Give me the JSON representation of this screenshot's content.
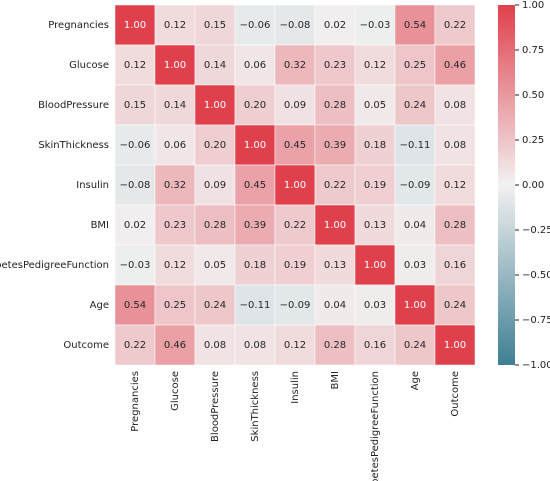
{
  "chart_data": {
    "type": "heatmap",
    "categories": [
      "Pregnancies",
      "Glucose",
      "BloodPressure",
      "SkinThickness",
      "Insulin",
      "BMI",
      "DiabetesPedigreeFunction",
      "Age",
      "Outcome"
    ],
    "values": [
      [
        1,
        0.12,
        0.15,
        -0.06,
        -0.08,
        0.02,
        -0.03,
        0.54,
        0.22
      ],
      [
        0.12,
        1,
        0.14,
        0.06,
        0.32,
        0.23,
        0.12,
        0.25,
        0.46
      ],
      [
        0.15,
        0.14,
        1,
        0.2,
        0.09,
        0.28,
        0.05,
        0.24,
        0.08
      ],
      [
        -0.06,
        0.06,
        0.2,
        1,
        0.45,
        0.39,
        0.18,
        -0.11,
        0.08
      ],
      [
        -0.08,
        0.32,
        0.09,
        0.45,
        1,
        0.22,
        0.19,
        -0.09,
        0.12
      ],
      [
        0.02,
        0.23,
        0.28,
        0.39,
        0.22,
        1,
        0.13,
        0.04,
        0.28
      ],
      [
        -0.03,
        0.12,
        0.05,
        0.18,
        0.19,
        0.13,
        1,
        0.03,
        0.16
      ],
      [
        0.54,
        0.25,
        0.24,
        -0.11,
        -0.09,
        0.04,
        0.03,
        1,
        0.24
      ],
      [
        0.22,
        0.46,
        0.08,
        0.08,
        0.12,
        0.28,
        0.16,
        0.24,
        1
      ]
    ],
    "value_labels": [
      [
        "1.00",
        "0.12",
        "0.15",
        "−0.06",
        "−0.08",
        "0.02",
        "−0.03",
        "0.54",
        "0.22"
      ],
      [
        "0.12",
        "1.00",
        "0.14",
        "0.06",
        "0.32",
        "0.23",
        "0.12",
        "0.25",
        "0.46"
      ],
      [
        "0.15",
        "0.14",
        "1.00",
        "0.20",
        "0.09",
        "0.28",
        "0.05",
        "0.24",
        "0.08"
      ],
      [
        "−0.06",
        "0.06",
        "0.20",
        "1.00",
        "0.45",
        "0.39",
        "0.18",
        "−0.11",
        "0.08"
      ],
      [
        "−0.08",
        "0.32",
        "0.09",
        "0.45",
        "1.00",
        "0.22",
        "0.19",
        "−0.09",
        "0.12"
      ],
      [
        "0.02",
        "0.23",
        "0.28",
        "0.39",
        "0.22",
        "1.00",
        "0.13",
        "0.04",
        "0.28"
      ],
      [
        "−0.03",
        "0.12",
        "0.05",
        "0.18",
        "0.19",
        "0.13",
        "1.00",
        "0.03",
        "0.16"
      ],
      [
        "0.54",
        "0.25",
        "0.24",
        "−0.11",
        "−0.09",
        "0.04",
        "0.03",
        "1.00",
        "0.24"
      ],
      [
        "0.22",
        "0.46",
        "0.08",
        "0.08",
        "0.12",
        "0.28",
        "0.16",
        "0.24",
        "1.00"
      ]
    ],
    "colormap": [
      "#3f7f93",
      "#f2f1f1",
      "#e0404c"
    ],
    "clim": [
      -1,
      1
    ],
    "cticks": [
      {
        "value": 1,
        "label": "1.00"
      },
      {
        "value": 0.75,
        "label": "0.75"
      },
      {
        "value": 0.5,
        "label": "0.50"
      },
      {
        "value": 0.25,
        "label": "0.25"
      },
      {
        "value": 0,
        "label": "0.00"
      },
      {
        "value": -0.25,
        "label": "−0.25"
      },
      {
        "value": -0.5,
        "label": "−0.50"
      },
      {
        "value": -0.75,
        "label": "−0.75"
      },
      {
        "value": -1,
        "label": "−1.00"
      }
    ]
  }
}
